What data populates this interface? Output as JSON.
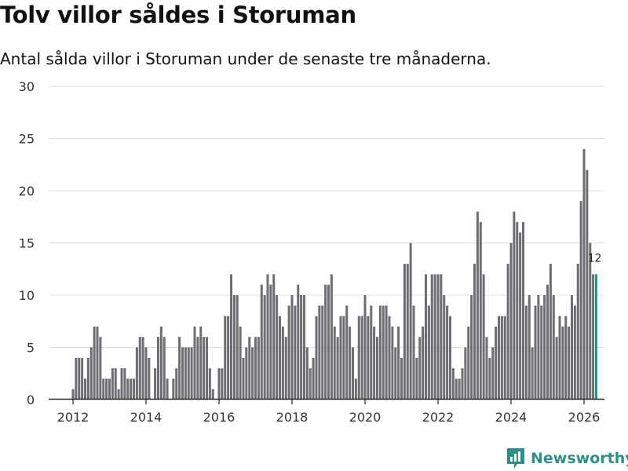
{
  "title": "Tolv villor såldes i Storuman",
  "subtitle": "Antal sålda villor i Storuman under de senaste tre månaderna.",
  "brand": {
    "name": "Newsworthy",
    "icon": "newsworthy-logo-icon",
    "color": "#2f8f86"
  },
  "chart_data": {
    "type": "bar",
    "title": "Tolv villor såldes i Storuman",
    "xlabel": "",
    "ylabel": "",
    "ylim": [
      0,
      30
    ],
    "yticks": [
      0,
      5,
      10,
      15,
      20,
      25,
      30
    ],
    "xticks": [
      "2012",
      "2014",
      "2016",
      "2018",
      "2020",
      "2022",
      "2024",
      "2026"
    ],
    "x_start": "2012-01",
    "frequency": "monthly",
    "bar_color": "#6e6d72",
    "highlight_color": "#1a9a8a",
    "highlight_label": "12",
    "grid": true,
    "values": [
      1,
      4,
      4,
      4,
      2,
      4,
      5,
      7,
      7,
      6,
      2,
      2,
      2,
      3,
      3,
      1,
      3,
      3,
      2,
      2,
      2,
      5,
      6,
      6,
      5,
      4,
      0,
      3,
      6,
      7,
      6,
      2,
      0,
      2,
      3,
      6,
      5,
      5,
      5,
      5,
      7,
      6,
      7,
      6,
      6,
      3,
      1,
      0,
      3,
      3,
      8,
      8,
      12,
      10,
      10,
      7,
      4,
      5,
      6,
      5,
      6,
      6,
      11,
      10,
      12,
      11,
      12,
      10,
      8,
      7,
      6,
      9,
      10,
      9,
      11,
      10,
      10,
      5,
      3,
      4,
      8,
      9,
      9,
      11,
      11,
      12,
      7,
      6,
      8,
      8,
      9,
      7,
      5,
      2,
      8,
      8,
      10,
      8,
      9,
      7,
      6,
      9,
      9,
      9,
      8,
      7,
      5,
      7,
      4,
      13,
      13,
      15,
      9,
      4,
      6,
      7,
      12,
      9,
      12,
      12,
      12,
      12,
      10,
      9,
      8,
      3,
      2,
      2,
      3,
      5,
      7,
      10,
      13,
      18,
      17,
      12,
      6,
      4,
      5,
      7,
      8,
      8,
      8,
      13,
      15,
      18,
      17,
      16,
      17,
      9,
      10,
      5,
      9,
      10,
      9,
      10,
      11,
      13,
      10,
      6,
      8,
      7,
      8,
      7,
      10,
      9,
      13,
      19,
      24,
      22,
      15,
      12,
      12
    ]
  }
}
